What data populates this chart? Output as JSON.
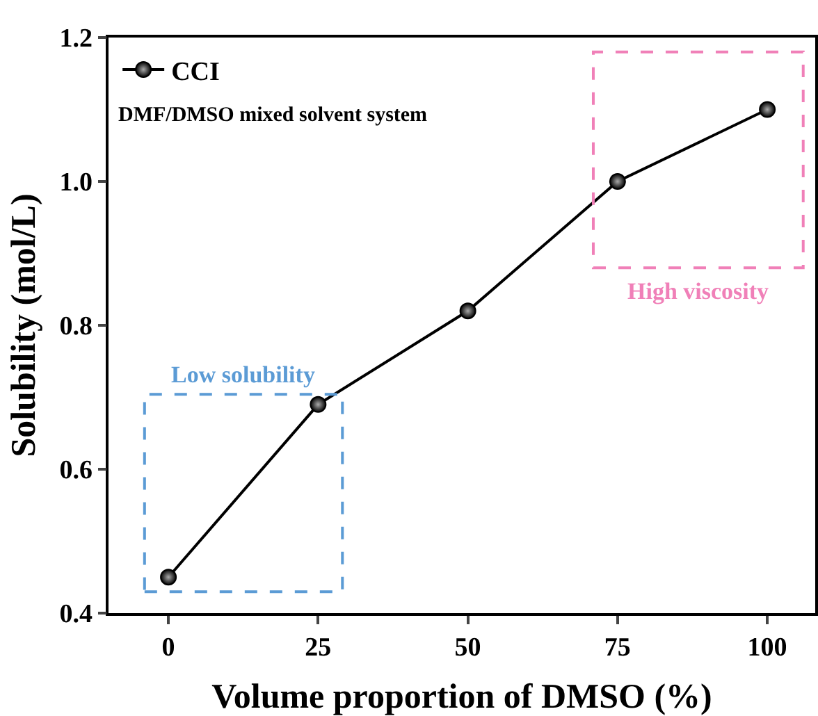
{
  "chart_data": {
    "type": "line",
    "xlabel": "Volume proportion of DMSO (%)",
    "ylabel": "Solubility (mol/L)",
    "x": [
      0,
      25,
      50,
      75,
      100
    ],
    "series": [
      {
        "name": "CCI",
        "color": "#000000",
        "values": [
          0.45,
          0.69,
          0.82,
          1.0,
          1.1
        ]
      }
    ],
    "xlim": [
      -10,
      108
    ],
    "xticks": [
      0,
      25,
      50,
      75,
      100
    ],
    "ylim": [
      0.4,
      1.2
    ],
    "yticks": [
      0.4,
      0.6,
      0.8,
      {
        "value": 1,
        "label": "1.0"
      },
      1.2
    ],
    "marker": "circle",
    "line_style": "solid",
    "grid": false,
    "legend": "top left",
    "annotations": [
      "DMF/DMSO mixed solvent system",
      "Low solubility",
      "High viscosity"
    ]
  }
}
